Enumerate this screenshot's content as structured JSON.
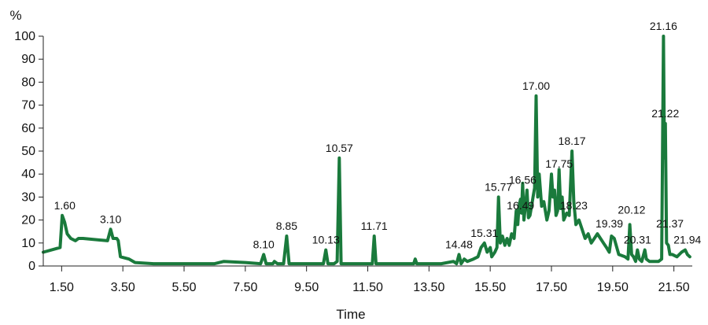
{
  "chart_data": {
    "type": "line",
    "title": "",
    "xlabel": "Time",
    "ylabel": "%",
    "xlim": [
      0.9,
      22.1
    ],
    "ylim": [
      0,
      100
    ],
    "grid": false,
    "legend": "none",
    "xticks": [
      1.5,
      3.5,
      5.5,
      7.5,
      9.5,
      11.5,
      13.5,
      15.5,
      17.5,
      19.5,
      21.5
    ],
    "xtick_labels": [
      "1.50",
      "3.50",
      "5.50",
      "7.50",
      "9.50",
      "11.50",
      "13.50",
      "15.50",
      "17.50",
      "19.50",
      "21.50"
    ],
    "yticks": [
      0,
      10,
      20,
      30,
      40,
      50,
      60,
      70,
      80,
      90,
      100
    ],
    "ytick_labels": [
      "0",
      "10",
      "20",
      "30",
      "40",
      "50",
      "60",
      "70",
      "80",
      "90",
      "100"
    ],
    "line_color": "#1a7a3c",
    "series": [
      {
        "x": [
          0.9,
          1.45,
          1.52,
          1.6,
          1.68,
          1.8,
          1.95,
          2.05,
          2.2,
          3.0,
          3.1,
          3.18,
          3.3,
          3.35,
          3.42,
          3.7,
          3.9,
          4.5,
          5.5,
          6.5,
          6.8,
          7.5,
          8.0,
          8.1,
          8.18,
          8.4,
          8.45,
          8.55,
          8.75,
          8.85,
          8.93,
          9.2,
          9.9,
          10.05,
          10.13,
          10.2,
          10.4,
          10.5,
          10.57,
          10.63,
          10.75,
          11.1,
          11.55,
          11.65,
          11.71,
          11.77,
          11.95,
          12.5,
          12.9,
          13.0,
          13.05,
          13.1,
          13.3,
          13.5,
          13.9,
          14.3,
          14.4,
          14.48,
          14.55,
          14.65,
          14.75,
          14.95,
          15.1,
          15.2,
          15.31,
          15.4,
          15.5,
          15.55,
          15.65,
          15.72,
          15.77,
          15.83,
          15.9,
          15.98,
          16.05,
          16.12,
          16.2,
          16.28,
          16.35,
          16.4,
          16.44,
          16.49,
          16.52,
          16.56,
          16.6,
          16.65,
          16.7,
          16.75,
          16.8,
          16.85,
          16.9,
          16.95,
          17.0,
          17.05,
          17.1,
          17.18,
          17.25,
          17.35,
          17.42,
          17.5,
          17.55,
          17.6,
          17.65,
          17.7,
          17.75,
          17.8,
          17.85,
          17.9,
          18.0,
          18.08,
          18.17,
          18.23,
          18.3,
          18.4,
          18.5,
          18.6,
          18.7,
          18.8,
          18.9,
          19.0,
          19.1,
          19.2,
          19.3,
          19.39,
          19.46,
          19.55,
          19.7,
          19.9,
          20.0,
          20.06,
          20.12,
          20.18,
          20.25,
          20.31,
          20.37,
          20.45,
          20.55,
          20.6,
          20.7,
          20.8,
          21.0,
          21.1,
          21.16,
          21.19,
          21.22,
          21.26,
          21.32,
          21.37,
          21.45,
          21.6,
          21.75,
          21.87,
          21.94,
          22.02
        ],
        "y": [
          6,
          8,
          22,
          19,
          14,
          12,
          11,
          12,
          12,
          11,
          16,
          12,
          12,
          11,
          4,
          3,
          1.5,
          1,
          1,
          1,
          2,
          1.5,
          1,
          5,
          1,
          1,
          2,
          1,
          1,
          13,
          1,
          1,
          1,
          1,
          7,
          1,
          1,
          2,
          47,
          1,
          1,
          1,
          1,
          1,
          13,
          1,
          1,
          1,
          1,
          1,
          3,
          1,
          1,
          1,
          1,
          2,
          1,
          5,
          1,
          3,
          2,
          3,
          4,
          8,
          10,
          6,
          8,
          4,
          6,
          8,
          30,
          10,
          13,
          9,
          12,
          9,
          14,
          12,
          24,
          18,
          26,
          29,
          23,
          36,
          20,
          26,
          33,
          21,
          22,
          26,
          30,
          34,
          74,
          30,
          40,
          26,
          28,
          20,
          24,
          40,
          30,
          33,
          22,
          24,
          42,
          25,
          30,
          20,
          23,
          22,
          50,
          28,
          18,
          20,
          16,
          12,
          14,
          10,
          12,
          14,
          12,
          10,
          8,
          6,
          13,
          12,
          5,
          4,
          3,
          18,
          5,
          4,
          2,
          7,
          3,
          2,
          7,
          3,
          2,
          2,
          2,
          3,
          100,
          47,
          62,
          10,
          9,
          5,
          5,
          4,
          6,
          7,
          5,
          4
        ]
      }
    ],
    "annotations": [
      {
        "text": "1.60",
        "x": 1.6,
        "y": 22
      },
      {
        "text": "3.10",
        "x": 3.1,
        "y": 16
      },
      {
        "text": "8.10",
        "x": 8.1,
        "y": 5
      },
      {
        "text": "8.85",
        "x": 8.85,
        "y": 13
      },
      {
        "text": "10.13",
        "x": 10.13,
        "y": 7
      },
      {
        "text": "10.57",
        "x": 10.57,
        "y": 47
      },
      {
        "text": "11.71",
        "x": 11.71,
        "y": 13
      },
      {
        "text": "14.48",
        "x": 14.48,
        "y": 5
      },
      {
        "text": "15.31",
        "x": 15.31,
        "y": 10
      },
      {
        "text": "15.77",
        "x": 15.77,
        "y": 30
      },
      {
        "text": "16.49",
        "x": 16.49,
        "y": 22
      },
      {
        "text": "16.56",
        "x": 16.56,
        "y": 33
      },
      {
        "text": "17.00",
        "x": 17.0,
        "y": 74
      },
      {
        "text": "17.75",
        "x": 17.75,
        "y": 40
      },
      {
        "text": "18.17",
        "x": 18.17,
        "y": 50
      },
      {
        "text": "18.23",
        "x": 18.23,
        "y": 22
      },
      {
        "text": "19.39",
        "x": 19.39,
        "y": 14
      },
      {
        "text": "20.12",
        "x": 20.12,
        "y": 20
      },
      {
        "text": "20.31",
        "x": 20.31,
        "y": 7
      },
      {
        "text": "21.16",
        "x": 21.16,
        "y": 100
      },
      {
        "text": "21.22",
        "x": 21.22,
        "y": 62
      },
      {
        "text": "21.37",
        "x": 21.37,
        "y": 14
      },
      {
        "text": "21.94",
        "x": 21.94,
        "y": 7
      }
    ]
  }
}
